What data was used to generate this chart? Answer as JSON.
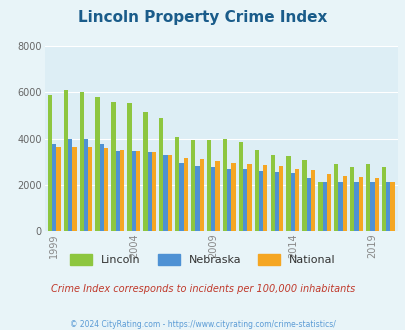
{
  "title": "Lincoln Property Crime Index",
  "title_color": "#1a5c8a",
  "subtitle": "Crime Index corresponds to incidents per 100,000 inhabitants",
  "footer": "© 2024 CityRating.com - https://www.cityrating.com/crime-statistics/",
  "years": [
    1999,
    2000,
    2001,
    2002,
    2003,
    2004,
    2005,
    2006,
    2007,
    2008,
    2009,
    2010,
    2011,
    2012,
    2013,
    2014,
    2015,
    2016,
    2017,
    2018,
    2019,
    2020
  ],
  "lincoln": [
    5900,
    6100,
    6020,
    5800,
    5600,
    5550,
    5150,
    4900,
    4050,
    3950,
    3950,
    3970,
    3870,
    3500,
    3300,
    3250,
    3080,
    2100,
    2900,
    2750,
    2900,
    2750
  ],
  "nebraska": [
    3750,
    4000,
    4000,
    3750,
    3450,
    3450,
    3400,
    3300,
    2950,
    2800,
    2750,
    2700,
    2700,
    2600,
    2550,
    2500,
    2300,
    2100,
    2100,
    2100,
    2100,
    2100
  ],
  "national": [
    3650,
    3650,
    3650,
    3600,
    3500,
    3480,
    3400,
    3300,
    3150,
    3100,
    3050,
    2950,
    2880,
    2850,
    2800,
    2700,
    2650,
    2450,
    2400,
    2350,
    2300,
    2100
  ],
  "lincoln_color": "#8dc63f",
  "nebraska_color": "#4e91d4",
  "national_color": "#f5a623",
  "bg_color": "#e8f4f8",
  "plot_bg": "#ddeef5",
  "ylim": [
    0,
    8000
  ],
  "yticks": [
    0,
    2000,
    4000,
    6000,
    8000
  ],
  "xtick_years": [
    1999,
    2004,
    2009,
    2014,
    2019
  ],
  "subtitle_color": "#c0392b",
  "footer_color": "#5b9bd5",
  "bar_width": 0.27
}
